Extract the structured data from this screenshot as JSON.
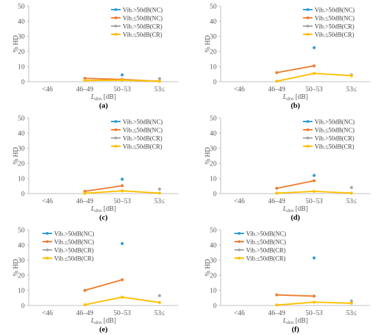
{
  "figure": {
    "shared": {
      "ylabel": "% HD",
      "xlabel_main": "L",
      "xlabel_sub": "den",
      "xlabel_unit": " [dB]",
      "categories": [
        "<46",
        "46–49",
        "50–53",
        "53≤"
      ],
      "yticks": [
        0,
        10,
        20,
        30,
        40,
        50
      ],
      "series_styles": [
        {
          "name": "Vib.>50dB(NC)",
          "color": "#2e9bd6"
        },
        {
          "name": "Vib.≤50dB(NC)",
          "color": "#ed7d31"
        },
        {
          "name": "Vib.>50dB(CR)",
          "color": "#a5a5a5"
        },
        {
          "name": "Vib.≤50dB(CR)",
          "color": "#ffc000"
        }
      ]
    }
  },
  "chart_data": [
    {
      "panel_label": "(a)",
      "type": "line",
      "categories": [
        "<46",
        "46–49",
        "50–53",
        "53≤"
      ],
      "ylim": [
        0,
        50
      ],
      "xlabel": "Lden [dB]",
      "ylabel": "% HD",
      "legend_position": "top-right",
      "series": [
        {
          "name": "Vib.>50dB(NC)",
          "values": [
            null,
            null,
            4.5,
            null
          ]
        },
        {
          "name": "Vib.≤50dB(NC)",
          "values": [
            null,
            2.2,
            1.5,
            0.3
          ]
        },
        {
          "name": "Vib.>50dB(CR)",
          "values": [
            null,
            null,
            null,
            2.0
          ]
        },
        {
          "name": "Vib.≤50dB(CR)",
          "values": [
            null,
            0.8,
            1.0,
            0.3
          ]
        }
      ]
    },
    {
      "panel_label": "(b)",
      "type": "line",
      "categories": [
        "<46",
        "46–49",
        "50–53",
        "53≤"
      ],
      "ylim": [
        0,
        50
      ],
      "xlabel": "Lden [dB]",
      "ylabel": "% HD",
      "legend_position": "top-right",
      "series": [
        {
          "name": "Vib.>50dB(NC)",
          "values": [
            null,
            null,
            22.5,
            null
          ]
        },
        {
          "name": "Vib.≤50dB(NC)",
          "values": [
            null,
            6.0,
            10.5,
            null
          ]
        },
        {
          "name": "Vib.>50dB(CR)",
          "values": [
            null,
            null,
            null,
            4.5
          ]
        },
        {
          "name": "Vib.≤50dB(CR)",
          "values": [
            null,
            0.3,
            5.5,
            4.0
          ]
        }
      ]
    },
    {
      "panel_label": "(c)",
      "type": "line",
      "categories": [
        "<46",
        "46–49",
        "50–53",
        "53≤"
      ],
      "ylim": [
        0,
        50
      ],
      "xlabel": "Lden [dB]",
      "ylabel": "% HD",
      "legend_position": "top-right",
      "series": [
        {
          "name": "Vib.>50dB(NC)",
          "values": [
            null,
            null,
            9.5,
            null
          ]
        },
        {
          "name": "Vib.≤50dB(NC)",
          "values": [
            null,
            1.5,
            5.2,
            null
          ]
        },
        {
          "name": "Vib.>50dB(CR)",
          "values": [
            null,
            null,
            null,
            3.0
          ]
        },
        {
          "name": "Vib.≤50dB(CR)",
          "values": [
            null,
            0.2,
            1.8,
            0.3
          ]
        }
      ]
    },
    {
      "panel_label": "(d)",
      "type": "line",
      "categories": [
        "<46",
        "46–49",
        "50–53",
        "53≤"
      ],
      "ylim": [
        0,
        50
      ],
      "xlabel": "Lden [dB]",
      "ylabel": "% HD",
      "legend_position": "top-right",
      "series": [
        {
          "name": "Vib.>50dB(NC)",
          "values": [
            null,
            null,
            12.0,
            null
          ]
        },
        {
          "name": "Vib.≤50dB(NC)",
          "values": [
            null,
            3.5,
            8.5,
            null
          ]
        },
        {
          "name": "Vib.>50dB(CR)",
          "values": [
            null,
            null,
            null,
            4.0
          ]
        },
        {
          "name": "Vib.≤50dB(CR)",
          "values": [
            null,
            0.3,
            1.5,
            0.3
          ]
        }
      ]
    },
    {
      "panel_label": "(e)",
      "type": "line",
      "categories": [
        "<46",
        "46–49",
        "50–53",
        "53≤"
      ],
      "ylim": [
        0,
        50
      ],
      "xlabel": "Lden [dB]",
      "ylabel": "% HD",
      "legend_position": "top-left",
      "series": [
        {
          "name": "Vib.>50dB(NC)",
          "values": [
            null,
            null,
            41.0,
            null
          ]
        },
        {
          "name": "Vib.≤50dB(NC)",
          "values": [
            null,
            10.0,
            17.0,
            null
          ]
        },
        {
          "name": "Vib.>50dB(CR)",
          "values": [
            null,
            null,
            null,
            6.5
          ]
        },
        {
          "name": "Vib.≤50dB(CR)",
          "values": [
            null,
            0.5,
            5.5,
            2.0
          ]
        }
      ]
    },
    {
      "panel_label": "(f)",
      "type": "line",
      "categories": [
        "<46",
        "46–49",
        "50–53",
        "53≤"
      ],
      "ylim": [
        0,
        50
      ],
      "xlabel": "Lden [dB]",
      "ylabel": "% HD",
      "legend_position": "top-left",
      "series": [
        {
          "name": "Vib.>50dB(NC)",
          "values": [
            null,
            null,
            31.5,
            null
          ]
        },
        {
          "name": "Vib.≤50dB(NC)",
          "values": [
            null,
            7.0,
            6.2,
            null
          ]
        },
        {
          "name": "Vib.>50dB(CR)",
          "values": [
            null,
            null,
            null,
            3.0
          ]
        },
        {
          "name": "Vib.≤50dB(CR)",
          "values": [
            null,
            0.3,
            2.2,
            1.5
          ]
        }
      ]
    }
  ]
}
